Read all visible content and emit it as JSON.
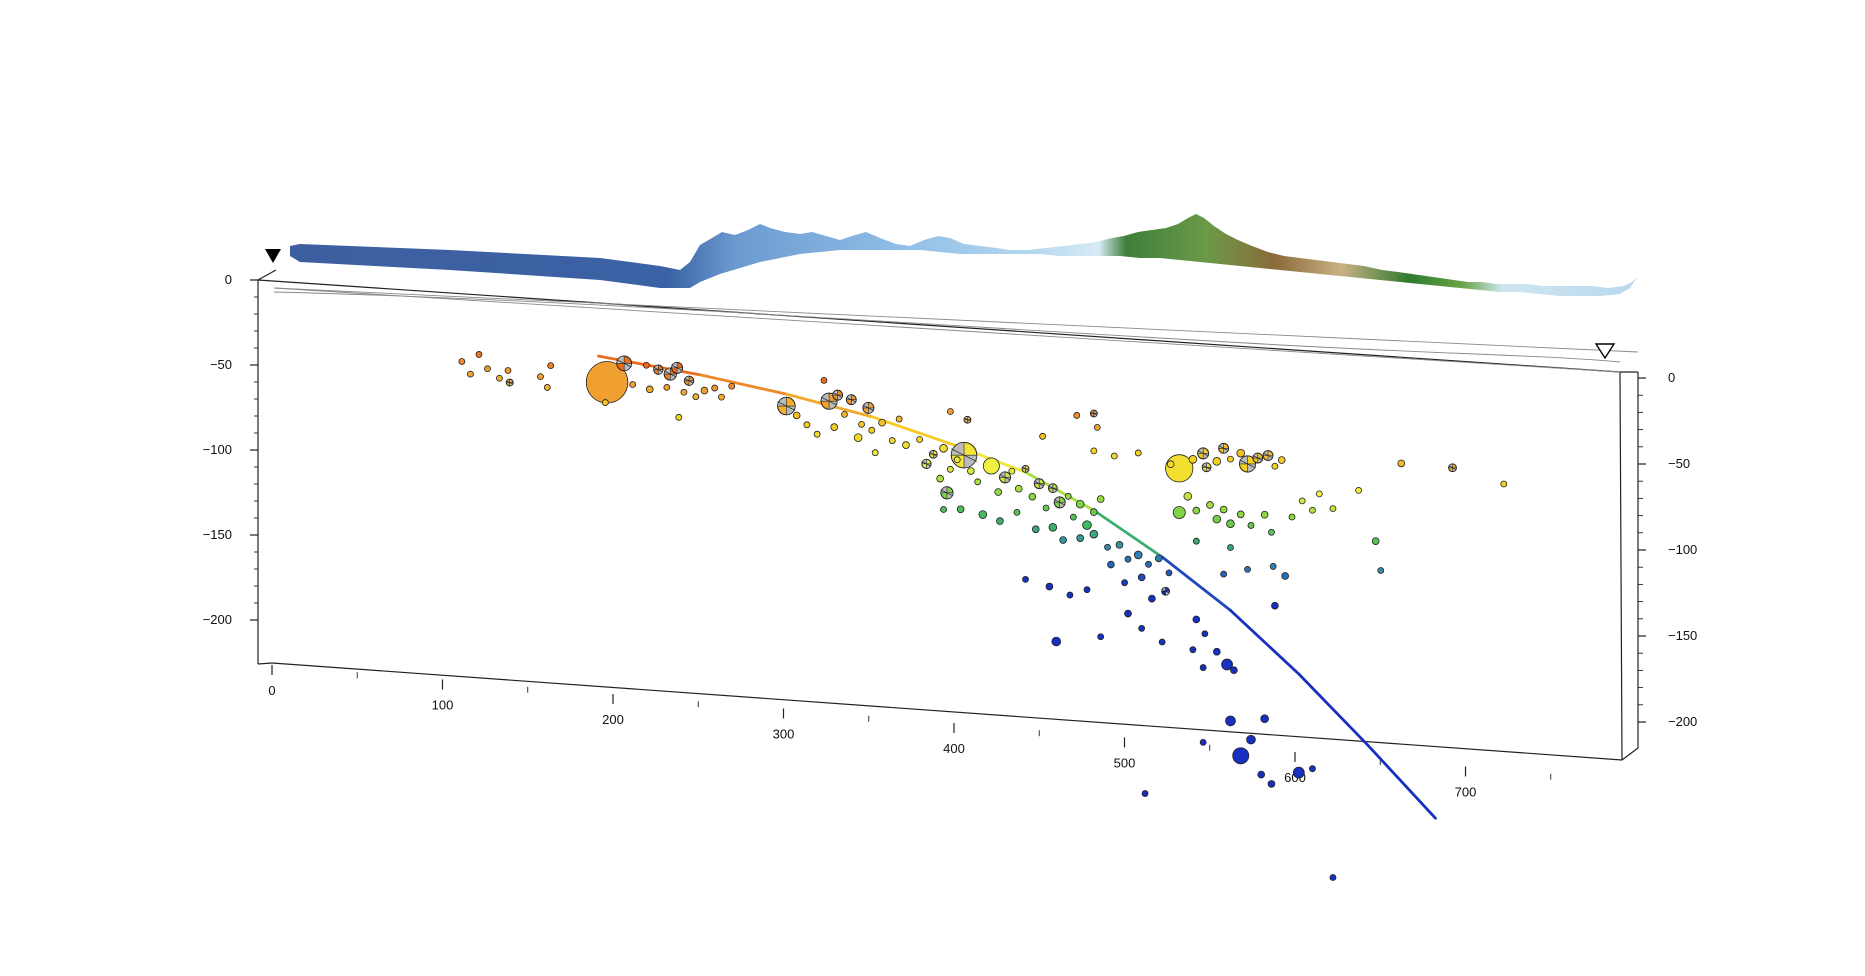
{
  "chart_data": {
    "type": "scatter",
    "title": "",
    "xlabel": "",
    "ylabel": "",
    "x_ticks": [
      "0",
      "100",
      "200",
      "300",
      "400",
      "500",
      "600",
      "700"
    ],
    "y_ticks_left": [
      "0",
      "−50",
      "−100",
      "−150",
      "−200"
    ],
    "y_ticks_right": [
      "0",
      "−50",
      "−100",
      "−150",
      "−200"
    ],
    "xlim": [
      0,
      780
    ],
    "ylim": [
      -230,
      0
    ],
    "depth_color_scale": [
      {
        "depth": 0,
        "color": "#dd2200"
      },
      {
        "depth": 25,
        "color": "#e8601a"
      },
      {
        "depth": 40,
        "color": "#f0a030"
      },
      {
        "depth": 55,
        "color": "#f5d020"
      },
      {
        "depth": 70,
        "color": "#f0f040"
      },
      {
        "depth": 85,
        "color": "#90d840"
      },
      {
        "depth": 100,
        "color": "#40b860"
      },
      {
        "depth": 115,
        "color": "#3080b8"
      },
      {
        "depth": 135,
        "color": "#1830c0"
      }
    ],
    "slab_line": {
      "x": [
        190,
        250,
        300,
        350,
        400,
        440,
        480,
        520,
        560,
        600,
        640,
        680
      ],
      "y": [
        -25,
        -31,
        -38,
        -47,
        -60,
        -72,
        -91,
        -115,
        -143,
        -177,
        -215,
        -255
      ]
    },
    "events": [
      {
        "x": 110,
        "y": -35,
        "m": 2.5
      },
      {
        "x": 115,
        "y": -42,
        "m": 2.5
      },
      {
        "x": 120,
        "y": -30,
        "m": 2.3
      },
      {
        "x": 125,
        "y": -38,
        "m": 2.6
      },
      {
        "x": 132,
        "y": -43,
        "m": 2.5
      },
      {
        "x": 138,
        "y": -45,
        "m": 3.0,
        "mech": true
      },
      {
        "x": 137,
        "y": -38,
        "m": 2.4
      },
      {
        "x": 156,
        "y": -40,
        "m": 2.3
      },
      {
        "x": 160,
        "y": -46,
        "m": 2.3
      },
      {
        "x": 162,
        "y": -33,
        "m": 2.7
      },
      {
        "x": 195,
        "y": -40,
        "m": 7.4
      },
      {
        "x": 194,
        "y": -52,
        "m": 2.6
      },
      {
        "x": 205,
        "y": -28,
        "m": 4.4,
        "mech": true
      },
      {
        "x": 210,
        "y": -40,
        "m": 2.6
      },
      {
        "x": 218,
        "y": -28,
        "m": 2.6
      },
      {
        "x": 220,
        "y": -42,
        "m": 3.0
      },
      {
        "x": 225,
        "y": -30,
        "m": 3.5,
        "mech": true
      },
      {
        "x": 230,
        "y": -40,
        "m": 2.6
      },
      {
        "x": 232,
        "y": -32,
        "m": 4.0,
        "mech": true
      },
      {
        "x": 236,
        "y": -28,
        "m": 3.8,
        "mech": true
      },
      {
        "x": 240,
        "y": -42,
        "m": 2.8
      },
      {
        "x": 237,
        "y": -57,
        "m": 2.5
      },
      {
        "x": 243,
        "y": -35,
        "m": 3.5,
        "mech": true
      },
      {
        "x": 247,
        "y": -44,
        "m": 2.7
      },
      {
        "x": 252,
        "y": -40,
        "m": 3.0
      },
      {
        "x": 258,
        "y": -38,
        "m": 2.8
      },
      {
        "x": 262,
        "y": -43,
        "m": 2.6
      },
      {
        "x": 268,
        "y": -36,
        "m": 2.6
      },
      {
        "x": 300,
        "y": -45,
        "m": 4.8,
        "mech": true
      },
      {
        "x": 306,
        "y": -50,
        "m": 3.0
      },
      {
        "x": 312,
        "y": -55,
        "m": 2.8
      },
      {
        "x": 318,
        "y": -60,
        "m": 2.7
      },
      {
        "x": 322,
        "y": -28,
        "m": 2.5
      },
      {
        "x": 325,
        "y": -40,
        "m": 4.6,
        "mech": true
      },
      {
        "x": 328,
        "y": -55,
        "m": 3.0
      },
      {
        "x": 330,
        "y": -36,
        "m": 3.6,
        "mech": true
      },
      {
        "x": 334,
        "y": -47,
        "m": 2.8
      },
      {
        "x": 338,
        "y": -38,
        "m": 3.6,
        "mech": true
      },
      {
        "x": 342,
        "y": -60,
        "m": 3.2
      },
      {
        "x": 344,
        "y": -52,
        "m": 2.7
      },
      {
        "x": 348,
        "y": -42,
        "m": 3.8,
        "mech": true
      },
      {
        "x": 350,
        "y": -55,
        "m": 2.6
      },
      {
        "x": 352,
        "y": -68,
        "m": 2.8
      },
      {
        "x": 356,
        "y": -50,
        "m": 3.0
      },
      {
        "x": 362,
        "y": -60,
        "m": 2.8
      },
      {
        "x": 366,
        "y": -47,
        "m": 2.6
      },
      {
        "x": 370,
        "y": -62,
        "m": 3.0
      },
      {
        "x": 378,
        "y": -58,
        "m": 2.8
      },
      {
        "x": 382,
        "y": -72,
        "m": 3.5,
        "mech": true
      },
      {
        "x": 386,
        "y": -66,
        "m": 3.2,
        "mech": true
      },
      {
        "x": 390,
        "y": -80,
        "m": 3.0
      },
      {
        "x": 392,
        "y": -62,
        "m": 3.2
      },
      {
        "x": 396,
        "y": -74,
        "m": 2.8
      },
      {
        "x": 400,
        "y": -68,
        "m": 2.6
      },
      {
        "x": 404,
        "y": -65,
        "m": 5.8,
        "mech": true
      },
      {
        "x": 408,
        "y": -74,
        "m": 3.0
      },
      {
        "x": 406,
        "y": -44,
        "m": 3.0,
        "mech": true
      },
      {
        "x": 412,
        "y": -80,
        "m": 2.8
      },
      {
        "x": 420,
        "y": -70,
        "m": 4.6
      },
      {
        "x": 424,
        "y": -85,
        "m": 3.0
      },
      {
        "x": 428,
        "y": -76,
        "m": 3.8,
        "mech": true
      },
      {
        "x": 432,
        "y": -72,
        "m": 2.8
      },
      {
        "x": 436,
        "y": -82,
        "m": 3.0
      },
      {
        "x": 440,
        "y": -70,
        "m": 3.0,
        "mech": true
      },
      {
        "x": 444,
        "y": -86,
        "m": 3.0
      },
      {
        "x": 448,
        "y": -78,
        "m": 3.6,
        "mech": true
      },
      {
        "x": 452,
        "y": -92,
        "m": 2.8
      },
      {
        "x": 456,
        "y": -80,
        "m": 3.4,
        "mech": true
      },
      {
        "x": 460,
        "y": -88,
        "m": 3.8,
        "mech": true
      },
      {
        "x": 465,
        "y": -84,
        "m": 2.6
      },
      {
        "x": 468,
        "y": -96,
        "m": 2.8
      },
      {
        "x": 472,
        "y": -88,
        "m": 3.2
      },
      {
        "x": 476,
        "y": -100,
        "m": 3.4
      },
      {
        "x": 480,
        "y": -92,
        "m": 3.0
      },
      {
        "x": 484,
        "y": -84,
        "m": 3.0
      },
      {
        "x": 394,
        "y": -88,
        "m": 4.0,
        "mech": true
      },
      {
        "x": 392,
        "y": -98,
        "m": 2.8
      },
      {
        "x": 402,
        "y": -97,
        "m": 3.0
      },
      {
        "x": 415,
        "y": -99,
        "m": 3.2
      },
      {
        "x": 425,
        "y": -102,
        "m": 3.0
      },
      {
        "x": 435,
        "y": -96,
        "m": 2.8
      },
      {
        "x": 446,
        "y": -105,
        "m": 3.0
      },
      {
        "x": 456,
        "y": -103,
        "m": 3.2
      },
      {
        "x": 462,
        "y": -110,
        "m": 3.0
      },
      {
        "x": 472,
        "y": -108,
        "m": 3.0
      },
      {
        "x": 480,
        "y": -105,
        "m": 3.2
      },
      {
        "x": 488,
        "y": -112,
        "m": 2.8
      },
      {
        "x": 495,
        "y": -110,
        "m": 3.0
      },
      {
        "x": 500,
        "y": -118,
        "m": 2.6
      },
      {
        "x": 506,
        "y": -115,
        "m": 3.2
      },
      {
        "x": 512,
        "y": -120,
        "m": 2.8
      },
      {
        "x": 518,
        "y": -116,
        "m": 3.0
      },
      {
        "x": 524,
        "y": -124,
        "m": 2.6
      },
      {
        "x": 490,
        "y": -122,
        "m": 3.0
      },
      {
        "x": 498,
        "y": -132,
        "m": 2.6
      },
      {
        "x": 508,
        "y": -128,
        "m": 3.0
      },
      {
        "x": 514,
        "y": -140,
        "m": 3.0
      },
      {
        "x": 522,
        "y": -135,
        "m": 3.2,
        "mech": true
      },
      {
        "x": 500,
        "y": -150,
        "m": 3.0
      },
      {
        "x": 508,
        "y": -158,
        "m": 2.6
      },
      {
        "x": 520,
        "y": -165,
        "m": 2.6
      },
      {
        "x": 440,
        "y": -135,
        "m": 2.6
      },
      {
        "x": 454,
        "y": -138,
        "m": 3.0
      },
      {
        "x": 466,
        "y": -142,
        "m": 2.6
      },
      {
        "x": 476,
        "y": -138,
        "m": 2.8
      },
      {
        "x": 458,
        "y": -170,
        "m": 3.4
      },
      {
        "x": 484,
        "y": -165,
        "m": 2.6
      },
      {
        "x": 540,
        "y": -150,
        "m": 3.0
      },
      {
        "x": 545,
        "y": -158,
        "m": 2.6
      },
      {
        "x": 552,
        "y": -168,
        "m": 3.0
      },
      {
        "x": 558,
        "y": -175,
        "m": 3.8
      },
      {
        "x": 562,
        "y": -178,
        "m": 3.0
      },
      {
        "x": 538,
        "y": -168,
        "m": 2.6
      },
      {
        "x": 544,
        "y": -178,
        "m": 2.6
      },
      {
        "x": 560,
        "y": -208,
        "m": 3.6
      },
      {
        "x": 580,
        "y": -205,
        "m": 3.2
      },
      {
        "x": 572,
        "y": -218,
        "m": 3.4
      },
      {
        "x": 566,
        "y": -228,
        "m": 4.6
      },
      {
        "x": 578,
        "y": -238,
        "m": 3.0
      },
      {
        "x": 584,
        "y": -243,
        "m": 3.0
      },
      {
        "x": 600,
        "y": -235,
        "m": 3.8
      },
      {
        "x": 608,
        "y": -232,
        "m": 2.8
      },
      {
        "x": 544,
        "y": -222,
        "m": 2.8
      },
      {
        "x": 510,
        "y": -255,
        "m": 2.8
      },
      {
        "x": 620,
        "y": -295,
        "m": 2.6
      },
      {
        "x": 480,
        "y": -34,
        "m": 3.0,
        "mech": true
      },
      {
        "x": 470,
        "y": -36,
        "m": 2.6
      },
      {
        "x": 482,
        "y": -42,
        "m": 2.6
      },
      {
        "x": 480,
        "y": -56,
        "m": 2.6
      },
      {
        "x": 492,
        "y": -58,
        "m": 2.8
      },
      {
        "x": 506,
        "y": -55,
        "m": 2.6
      },
      {
        "x": 525,
        "y": -60,
        "m": 3.0
      },
      {
        "x": 530,
        "y": -62,
        "m": 6.0
      },
      {
        "x": 538,
        "y": -56,
        "m": 3.2
      },
      {
        "x": 544,
        "y": -52,
        "m": 3.8,
        "mech": true
      },
      {
        "x": 546,
        "y": -60,
        "m": 3.4,
        "mech": true
      },
      {
        "x": 552,
        "y": -56,
        "m": 3.2
      },
      {
        "x": 556,
        "y": -48,
        "m": 3.6,
        "mech": true
      },
      {
        "x": 560,
        "y": -54,
        "m": 2.8
      },
      {
        "x": 566,
        "y": -50,
        "m": 3.2
      },
      {
        "x": 570,
        "y": -56,
        "m": 4.6,
        "mech": true
      },
      {
        "x": 576,
        "y": -52,
        "m": 3.6,
        "mech": true
      },
      {
        "x": 582,
        "y": -50,
        "m": 3.6,
        "mech": true
      },
      {
        "x": 586,
        "y": -56,
        "m": 2.8
      },
      {
        "x": 590,
        "y": -52,
        "m": 3.0
      },
      {
        "x": 535,
        "y": -78,
        "m": 3.2
      },
      {
        "x": 530,
        "y": -88,
        "m": 4.0
      },
      {
        "x": 540,
        "y": -86,
        "m": 3.0
      },
      {
        "x": 548,
        "y": -82,
        "m": 3.0
      },
      {
        "x": 552,
        "y": -90,
        "m": 3.2
      },
      {
        "x": 556,
        "y": -84,
        "m": 3.0
      },
      {
        "x": 560,
        "y": -92,
        "m": 3.2
      },
      {
        "x": 566,
        "y": -86,
        "m": 3.0
      },
      {
        "x": 572,
        "y": -92,
        "m": 2.8
      },
      {
        "x": 580,
        "y": -85,
        "m": 3.0
      },
      {
        "x": 584,
        "y": -95,
        "m": 2.6
      },
      {
        "x": 540,
        "y": -104,
        "m": 2.6
      },
      {
        "x": 560,
        "y": -106,
        "m": 2.6
      },
      {
        "x": 570,
        "y": -118,
        "m": 2.6
      },
      {
        "x": 556,
        "y": -122,
        "m": 2.6
      },
      {
        "x": 585,
        "y": -115,
        "m": 2.6
      },
      {
        "x": 592,
        "y": -120,
        "m": 3.0
      },
      {
        "x": 596,
        "y": -85,
        "m": 2.8
      },
      {
        "x": 602,
        "y": -75,
        "m": 2.8
      },
      {
        "x": 608,
        "y": -80,
        "m": 2.6
      },
      {
        "x": 586,
        "y": -138,
        "m": 3.0
      },
      {
        "x": 612,
        "y": -70,
        "m": 2.6
      },
      {
        "x": 620,
        "y": -78,
        "m": 2.6
      },
      {
        "x": 635,
        "y": -66,
        "m": 2.6
      },
      {
        "x": 645,
        "y": -95,
        "m": 3.0
      },
      {
        "x": 648,
        "y": -112,
        "m": 2.6
      },
      {
        "x": 660,
        "y": -48,
        "m": 3.0
      },
      {
        "x": 690,
        "y": -48,
        "m": 3.2,
        "mech": true
      },
      {
        "x": 720,
        "y": -55,
        "m": 2.6
      },
      {
        "x": 396,
        "y": -40,
        "m": 2.8
      },
      {
        "x": 450,
        "y": -50,
        "m": 2.6
      }
    ]
  }
}
